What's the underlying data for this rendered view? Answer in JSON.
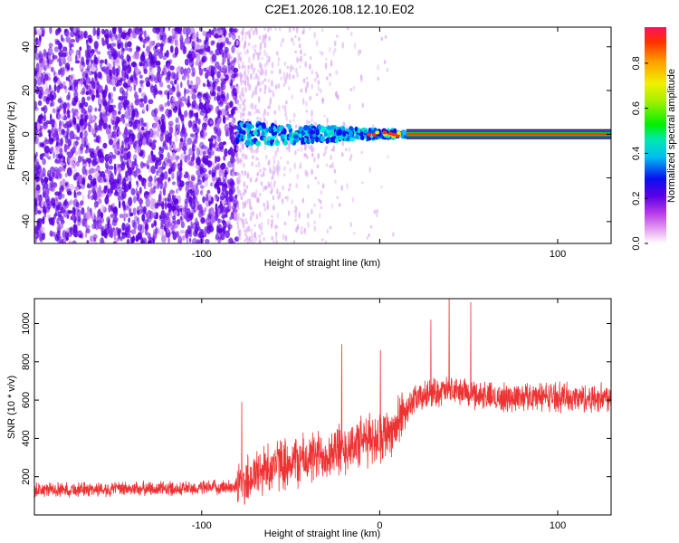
{
  "title": "C2E1.2026.108.12.10.E02",
  "chart_data": [
    {
      "type": "heatmap",
      "xlabel": "Height of straight line (km)",
      "ylabel": "Frequency (Hz)",
      "xlim": [
        -194,
        130
      ],
      "ylim": [
        -50,
        49
      ],
      "xticks": [
        -100,
        0,
        100
      ],
      "xtick_labels": [
        "-100",
        "",
        "100"
      ],
      "yticks": [
        -40,
        -20,
        0,
        20,
        40
      ],
      "ytick_labels": [
        "-40",
        "-20",
        "0",
        "20",
        "40"
      ],
      "colorbar": {
        "label": "Normalized spectral amplitude",
        "range": [
          0,
          0.96
        ],
        "ticks": [
          0,
          0.2,
          0.4,
          0.6,
          0.8
        ],
        "tick_labels": [
          "0.0",
          "0.2",
          "0.4",
          "0.6",
          "0.8"
        ],
        "colormap": "rainbow"
      },
      "features": {
        "noise_region_x": [
          -194,
          -80
        ],
        "signal_onset_x": -80,
        "carrier_frequency_hz": 0,
        "steady_carrier_from_x": 15
      }
    },
    {
      "type": "line",
      "xlabel": "Height of straight line (km)",
      "ylabel": "SNR (10 * v/v)",
      "xlim": [
        -194,
        130
      ],
      "ylim": [
        0,
        1130
      ],
      "xticks": [
        -100,
        0,
        100
      ],
      "xtick_labels": [
        "-100",
        "0",
        "100"
      ],
      "yticks": [
        200,
        400,
        600,
        800,
        1000
      ],
      "ytick_labels": [
        "200",
        "400",
        "600",
        "800",
        "1000"
      ],
      "series": [
        {
          "name": "SNR",
          "color": "#ee3333",
          "x": [
            -194,
            -150,
            -100,
            -80,
            -70,
            -60,
            -50,
            -40,
            -30,
            -20,
            -10,
            0,
            10,
            15,
            20,
            30,
            40,
            50,
            60,
            70,
            80,
            90,
            100,
            110,
            120,
            130
          ],
          "values": [
            130,
            135,
            140,
            150,
            210,
            260,
            280,
            290,
            320,
            350,
            380,
            410,
            470,
            560,
            600,
            640,
            650,
            640,
            620,
            610,
            620,
            620,
            620,
            610,
            610,
            620
          ]
        }
      ]
    }
  ]
}
